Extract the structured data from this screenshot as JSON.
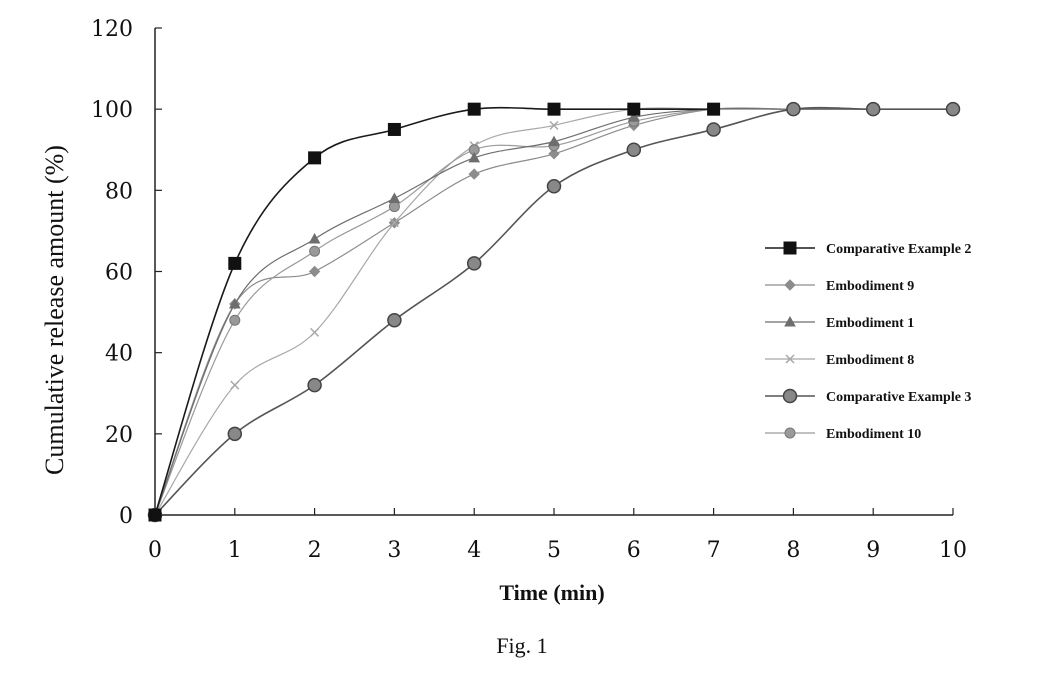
{
  "chart_data": {
    "type": "line",
    "title": "",
    "xlabel": "Time (min)",
    "ylabel": "Cumulative release amount (%)",
    "xlim": [
      0,
      10
    ],
    "ylim": [
      0,
      120
    ],
    "xticks": [
      0,
      1,
      2,
      3,
      4,
      5,
      6,
      7,
      8,
      9,
      10
    ],
    "yticks": [
      0,
      20,
      40,
      60,
      80,
      100,
      120
    ],
    "grid": false,
    "legend_position": "right",
    "caption": "Fig. 1",
    "series": [
      {
        "name": "Comparative Example 2",
        "marker": "square",
        "color": "#1a1a1a",
        "x": [
          0,
          1,
          2,
          3,
          4,
          5,
          6,
          7
        ],
        "y": [
          0,
          62,
          88,
          95,
          100,
          100,
          100,
          100
        ]
      },
      {
        "name": "Embodiment 9",
        "marker": "diamond",
        "color": "#8c8c8c",
        "x": [
          0,
          1,
          2,
          3,
          4,
          5,
          6,
          7,
          8,
          9,
          10
        ],
        "y": [
          0,
          52,
          60,
          72,
          84,
          89,
          96,
          100,
          100,
          100,
          100
        ]
      },
      {
        "name": "Embodiment 1",
        "marker": "triangle",
        "color": "#6e6e6e",
        "x": [
          0,
          1,
          2,
          3,
          4,
          5,
          6,
          7,
          8,
          9,
          10
        ],
        "y": [
          0,
          52,
          68,
          78,
          88,
          92,
          98,
          100,
          100,
          100,
          100
        ]
      },
      {
        "name": "Embodiment 8",
        "marker": "x",
        "color": "#a8a8a8",
        "x": [
          0,
          1,
          2,
          3,
          4,
          5,
          6,
          7,
          8,
          9,
          10
        ],
        "y": [
          0,
          32,
          45,
          72,
          91,
          96,
          100,
          100,
          100,
          100,
          100
        ]
      },
      {
        "name": "Comparative Example 3",
        "marker": "circle",
        "color": "#555555",
        "x": [
          0,
          1,
          2,
          3,
          4,
          5,
          6,
          7,
          8,
          9,
          10
        ],
        "y": [
          0,
          20,
          32,
          48,
          62,
          81,
          90,
          95,
          100,
          100,
          100
        ]
      },
      {
        "name": "Embodiment 10",
        "marker": "star",
        "color": "#9a9a9a",
        "x": [
          0,
          1,
          2,
          3,
          4,
          5,
          6,
          7,
          8,
          9,
          10
        ],
        "y": [
          0,
          48,
          65,
          76,
          90,
          91,
          97,
          100,
          100,
          100,
          100
        ]
      }
    ]
  }
}
